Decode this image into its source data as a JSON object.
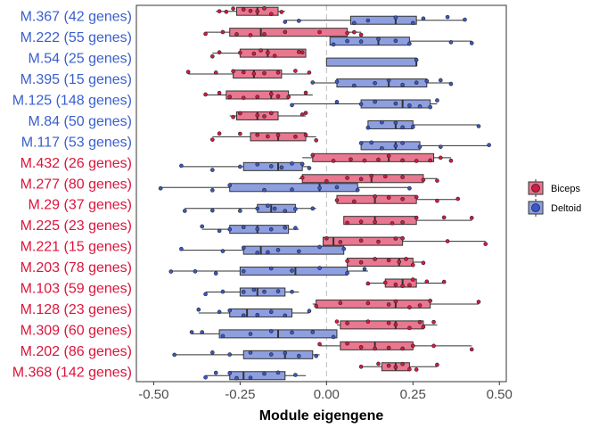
{
  "chart_data": {
    "type": "boxplot",
    "orientation": "horizontal",
    "xlabel": "Module eigengene",
    "xlim": [
      -0.55,
      0.52
    ],
    "xticks": [
      -0.5,
      -0.25,
      0.0,
      0.25,
      0.5
    ],
    "xtick_labels": [
      "-0.50",
      "-0.25",
      "0.00",
      "0.25",
      "0.50"
    ],
    "reference_line": 0.0,
    "legend_position": "right",
    "series": [
      {
        "name": "Biceps",
        "color": "#e8778f",
        "point_color": "#d41a45"
      },
      {
        "name": "Deltoid",
        "color": "#8e9fe0",
        "point_color": "#3b58c8"
      }
    ],
    "label_colors": {
      "blue": "#3a5fcd",
      "red": "#dc143c"
    },
    "modules": [
      {
        "label": "M.367 (42 genes)",
        "label_color": "blue",
        "Biceps": {
          "min": -0.32,
          "q1": -0.26,
          "median": -0.2,
          "q3": -0.14,
          "max": -0.12,
          "points": [
            -0.31,
            -0.29,
            -0.27,
            -0.24,
            -0.22,
            -0.2,
            -0.18,
            -0.16,
            -0.13
          ]
        },
        "Deltoid": {
          "min": -0.12,
          "q1": 0.07,
          "median": 0.2,
          "q3": 0.26,
          "max": 0.4,
          "points": [
            -0.12,
            -0.08,
            0.08,
            0.12,
            0.2,
            0.25,
            0.28,
            0.35,
            0.4
          ]
        }
      },
      {
        "label": "M.222 (55 genes)",
        "label_color": "blue",
        "Biceps": {
          "min": -0.35,
          "q1": -0.28,
          "median": -0.19,
          "q3": 0.06,
          "max": 0.1,
          "points": [
            -0.35,
            -0.3,
            -0.26,
            -0.22,
            -0.18,
            -0.12,
            -0.02,
            0.06,
            0.08,
            0.1
          ]
        },
        "Deltoid": {
          "min": 0.01,
          "q1": 0.01,
          "median": 0.15,
          "q3": 0.24,
          "max": 0.42,
          "points": [
            0.02,
            0.06,
            0.1,
            0.15,
            0.2,
            0.24,
            0.36,
            0.42
          ]
        }
      },
      {
        "label": "M.54 (25 genes)",
        "label_color": "blue",
        "Biceps": {
          "min": -0.33,
          "q1": -0.25,
          "median": -0.17,
          "q3": -0.06,
          "max": -0.06,
          "points": [
            -0.33,
            -0.31,
            -0.25,
            -0.21,
            -0.19,
            -0.17,
            -0.15,
            -0.08,
            -0.07
          ]
        },
        "Deltoid": {
          "min": 0.0,
          "q1": 0.0,
          "median": 0.26,
          "q3": 0.26,
          "max": 0.26,
          "points": [
            0.26
          ]
        }
      },
      {
        "label": "M.395 (15 genes)",
        "label_color": "blue",
        "Biceps": {
          "min": -0.4,
          "q1": -0.27,
          "median": -0.21,
          "q3": -0.13,
          "max": -0.05,
          "points": [
            -0.4,
            -0.32,
            -0.27,
            -0.24,
            -0.21,
            -0.18,
            -0.14,
            -0.09,
            -0.05
          ]
        },
        "Deltoid": {
          "min": -0.04,
          "q1": 0.03,
          "median": 0.18,
          "q3": 0.29,
          "max": 0.36,
          "points": [
            -0.04,
            0.03,
            0.08,
            0.14,
            0.18,
            0.22,
            0.26,
            0.29,
            0.33,
            0.36
          ]
        }
      },
      {
        "label": "M.125 (148 genes)",
        "label_color": "blue",
        "Biceps": {
          "min": -0.35,
          "q1": -0.29,
          "median": -0.16,
          "q3": -0.11,
          "max": -0.04,
          "points": [
            -0.35,
            -0.31,
            -0.28,
            -0.24,
            -0.2,
            -0.16,
            -0.14,
            -0.11,
            -0.06
          ]
        },
        "Deltoid": {
          "min": -0.1,
          "q1": 0.1,
          "median": 0.22,
          "q3": 0.3,
          "max": 0.32,
          "points": [
            -0.1,
            0.03,
            0.1,
            0.14,
            0.2,
            0.24,
            0.27,
            0.3,
            0.32
          ]
        }
      },
      {
        "label": "M.84 (50 genes)",
        "label_color": "blue",
        "Biceps": {
          "min": -0.28,
          "q1": -0.26,
          "median": -0.2,
          "q3": -0.14,
          "max": -0.06,
          "points": [
            -0.27,
            -0.25,
            -0.2,
            -0.18,
            -0.16,
            -0.07,
            -0.06
          ]
        },
        "Deltoid": {
          "min": 0.12,
          "q1": 0.12,
          "median": 0.2,
          "q3": 0.25,
          "max": 0.44,
          "points": [
            0.12,
            0.16,
            0.2,
            0.22,
            0.25,
            0.44
          ]
        }
      },
      {
        "label": "M.117 (53 genes)",
        "label_color": "blue",
        "Biceps": {
          "min": -0.33,
          "q1": -0.22,
          "median": -0.14,
          "q3": -0.06,
          "max": -0.03,
          "points": [
            -0.33,
            -0.31,
            -0.25,
            -0.2,
            -0.17,
            -0.14,
            -0.09,
            -0.06,
            -0.03
          ]
        },
        "Deltoid": {
          "min": 0.1,
          "q1": 0.1,
          "median": 0.2,
          "q3": 0.27,
          "max": 0.47,
          "points": [
            0.1,
            0.13,
            0.16,
            0.2,
            0.22,
            0.27,
            0.33,
            0.47
          ]
        }
      },
      {
        "label": "M.432 (26 genes)",
        "label_color": "red",
        "Biceps": {
          "min": -0.07,
          "q1": -0.04,
          "median": 0.18,
          "q3": 0.31,
          "max": 0.36,
          "points": [
            -0.04,
            0.02,
            0.07,
            0.11,
            0.15,
            0.18,
            0.22,
            0.26,
            0.3,
            0.33,
            0.36
          ]
        },
        "Deltoid": {
          "min": -0.42,
          "q1": -0.24,
          "median": -0.14,
          "q3": -0.07,
          "max": -0.05,
          "points": [
            -0.42,
            -0.33,
            -0.25,
            -0.2,
            -0.16,
            -0.13,
            -0.1,
            -0.07,
            -0.05
          ]
        }
      },
      {
        "label": "M.277 (80 genes)",
        "label_color": "red",
        "Biceps": {
          "min": -0.08,
          "q1": -0.07,
          "median": 0.13,
          "q3": 0.28,
          "max": 0.32,
          "points": [
            -0.07,
            0.0,
            0.06,
            0.1,
            0.13,
            0.17,
            0.22,
            0.28,
            0.32
          ]
        },
        "Deltoid": {
          "min": -0.48,
          "q1": -0.28,
          "median": -0.02,
          "q3": 0.09,
          "max": 0.24,
          "points": [
            -0.48,
            -0.33,
            -0.28,
            -0.18,
            -0.1,
            -0.02,
            0.03,
            0.09,
            0.24
          ]
        }
      },
      {
        "label": "M.29 (37 genes)",
        "label_color": "red",
        "Biceps": {
          "min": 0.03,
          "q1": 0.03,
          "median": 0.14,
          "q3": 0.26,
          "max": 0.38,
          "points": [
            0.03,
            0.08,
            0.14,
            0.18,
            0.22,
            0.26,
            0.32,
            0.38
          ]
        },
        "Deltoid": {
          "min": -0.41,
          "q1": -0.2,
          "median": -0.16,
          "q3": -0.09,
          "max": -0.03,
          "points": [
            -0.41,
            -0.33,
            -0.25,
            -0.2,
            -0.17,
            -0.15,
            -0.12,
            -0.09,
            -0.04
          ]
        }
      },
      {
        "label": "M.225 (23 genes)",
        "label_color": "red",
        "Biceps": {
          "min": 0.05,
          "q1": 0.05,
          "median": 0.14,
          "q3": 0.26,
          "max": 0.42,
          "points": [
            0.06,
            0.1,
            0.14,
            0.19,
            0.22,
            0.26,
            0.34,
            0.42
          ]
        },
        "Deltoid": {
          "min": -0.36,
          "q1": -0.28,
          "median": -0.2,
          "q3": -0.11,
          "max": -0.08,
          "points": [
            -0.36,
            -0.31,
            -0.28,
            -0.24,
            -0.2,
            -0.16,
            -0.12,
            -0.09
          ]
        }
      },
      {
        "label": "M.221 (15 genes)",
        "label_color": "red",
        "Biceps": {
          "min": -0.01,
          "q1": -0.01,
          "median": 0.02,
          "q3": 0.22,
          "max": 0.46,
          "points": [
            0.0,
            0.04,
            0.1,
            0.15,
            0.2,
            0.22,
            0.35,
            0.46
          ]
        },
        "Deltoid": {
          "min": -0.42,
          "q1": -0.24,
          "median": -0.19,
          "q3": 0.05,
          "max": 0.05,
          "points": [
            -0.42,
            -0.3,
            -0.24,
            -0.2,
            -0.17,
            -0.14,
            -0.08,
            -0.02,
            0.05
          ]
        }
      },
      {
        "label": "M.203 (78 genes)",
        "label_color": "red",
        "Biceps": {
          "min": 0.06,
          "q1": 0.06,
          "median": 0.21,
          "q3": 0.25,
          "max": 0.28,
          "points": [
            0.06,
            0.1,
            0.14,
            0.18,
            0.21,
            0.23,
            0.25,
            0.28
          ]
        },
        "Deltoid": {
          "min": -0.45,
          "q1": -0.25,
          "median": -0.09,
          "q3": 0.06,
          "max": 0.12,
          "points": [
            -0.45,
            -0.38,
            -0.32,
            -0.24,
            -0.16,
            -0.1,
            -0.02,
            0.06,
            0.11
          ]
        }
      },
      {
        "label": "M.103 (59 genes)",
        "label_color": "red",
        "Biceps": {
          "min": 0.12,
          "q1": 0.17,
          "median": 0.22,
          "q3": 0.26,
          "max": 0.34,
          "points": [
            0.12,
            0.17,
            0.2,
            0.22,
            0.24,
            0.25,
            0.29,
            0.34
          ]
        },
        "Deltoid": {
          "min": -0.35,
          "q1": -0.25,
          "median": -0.2,
          "q3": -0.12,
          "max": -0.08,
          "points": [
            -0.35,
            -0.3,
            -0.24,
            -0.21,
            -0.18,
            -0.14,
            -0.1
          ]
        }
      },
      {
        "label": "M.128 (23 genes)",
        "label_color": "red",
        "Biceps": {
          "min": -0.04,
          "q1": -0.03,
          "median": 0.2,
          "q3": 0.3,
          "max": 0.44,
          "points": [
            -0.03,
            0.04,
            0.12,
            0.18,
            0.2,
            0.24,
            0.27,
            0.3,
            0.44
          ]
        },
        "Deltoid": {
          "min": -0.37,
          "q1": -0.28,
          "median": -0.23,
          "q3": -0.1,
          "max": -0.05,
          "points": [
            -0.37,
            -0.31,
            -0.28,
            -0.24,
            -0.2,
            -0.16,
            -0.12,
            -0.05
          ]
        }
      },
      {
        "label": "M.309 (60 genes)",
        "label_color": "red",
        "Biceps": {
          "min": 0.03,
          "q1": 0.04,
          "median": 0.2,
          "q3": 0.28,
          "max": 0.32,
          "points": [
            0.03,
            0.06,
            0.12,
            0.18,
            0.2,
            0.24,
            0.27,
            0.28,
            0.31
          ]
        },
        "Deltoid": {
          "min": -0.39,
          "q1": -0.31,
          "median": -0.14,
          "q3": 0.03,
          "max": 0.03,
          "points": [
            -0.39,
            -0.36,
            -0.3,
            -0.22,
            -0.16,
            -0.1,
            -0.04,
            0.02
          ]
        }
      },
      {
        "label": "M.202 (86 genes)",
        "label_color": "red",
        "Biceps": {
          "min": -0.02,
          "q1": 0.04,
          "median": 0.14,
          "q3": 0.25,
          "max": 0.42,
          "points": [
            -0.02,
            0.06,
            0.1,
            0.14,
            0.18,
            0.22,
            0.25,
            0.31,
            0.42
          ]
        },
        "Deltoid": {
          "min": -0.44,
          "q1": -0.24,
          "median": -0.12,
          "q3": -0.04,
          "max": -0.02,
          "points": [
            -0.44,
            -0.33,
            -0.28,
            -0.22,
            -0.16,
            -0.12,
            -0.08,
            -0.03
          ]
        }
      },
      {
        "label": "M.368 (142 genes)",
        "label_color": "red",
        "Biceps": {
          "min": 0.1,
          "q1": 0.16,
          "median": 0.2,
          "q3": 0.24,
          "max": 0.32,
          "points": [
            0.1,
            0.15,
            0.18,
            0.2,
            0.22,
            0.24,
            0.26,
            0.32
          ]
        },
        "Deltoid": {
          "min": -0.35,
          "q1": -0.28,
          "median": -0.24,
          "q3": -0.12,
          "max": -0.06,
          "points": [
            -0.35,
            -0.32,
            -0.28,
            -0.26,
            -0.22,
            -0.18,
            -0.14,
            -0.09
          ]
        }
      }
    ]
  }
}
